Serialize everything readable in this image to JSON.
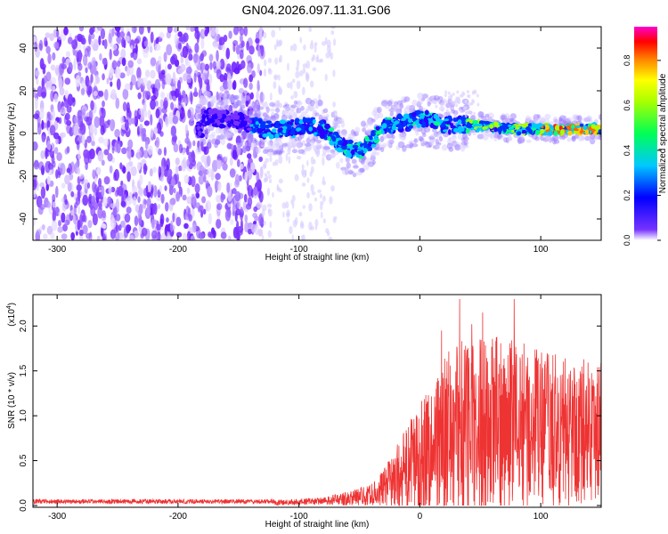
{
  "title": "GN04.2026.097.11.31.G06",
  "chart_data": [
    {
      "type": "heatmap",
      "name": "spectrogram",
      "xlabel": "Height of straight line (km)",
      "ylabel": "Frequency (Hz)",
      "xlim": [
        -320,
        150
      ],
      "ylim": [
        -50,
        50
      ],
      "xticks": [
        -300,
        -200,
        -100,
        0,
        100
      ],
      "xtick_labels": [
        "-300",
        "-200",
        "-100",
        "0",
        "100"
      ],
      "yticks": [
        -40,
        -20,
        0,
        20,
        40
      ],
      "ytick_labels": [
        "-40",
        "-20",
        "0",
        "20",
        "40"
      ],
      "colorbar": {
        "label": "Normalized spectral amplitude",
        "range": [
          0,
          0.95
        ],
        "ticks": [
          0.0,
          0.2,
          0.4,
          0.6,
          0.8
        ],
        "tick_labels": [
          "0.0",
          "0.2",
          "0.4",
          "0.6",
          "0.8"
        ],
        "colormap": [
          "#ffffff",
          "#3300ff",
          "#0000ff",
          "#00e5ff",
          "#00ff00",
          "#ffff00",
          "#ff8000",
          "#ff0000",
          "#ff00cc"
        ]
      },
      "features": {
        "noise_region_x": [
          -320,
          -130
        ],
        "faint_region_x": [
          -130,
          -70
        ],
        "signal_trace": [
          [
            -180,
            8
          ],
          [
            -150,
            6
          ],
          [
            -130,
            2
          ],
          [
            -110,
            2
          ],
          [
            -90,
            4
          ],
          [
            -80,
            2
          ],
          [
            -70,
            -3
          ],
          [
            -60,
            -7
          ],
          [
            -50,
            -8
          ],
          [
            -40,
            -4
          ],
          [
            -30,
            4
          ],
          [
            -10,
            5
          ],
          [
            0,
            7
          ],
          [
            10,
            6
          ],
          [
            20,
            4
          ],
          [
            40,
            4
          ],
          [
            60,
            3
          ],
          [
            80,
            2
          ],
          [
            100,
            2
          ],
          [
            120,
            2
          ],
          [
            150,
            2
          ]
        ]
      }
    },
    {
      "type": "line",
      "name": "snr",
      "xlabel": "Height of straight line (km)",
      "ylabel": "SNR (10 * v/v)",
      "yscale_label": "(x10",
      "yscale_exp": "4",
      "xlim": [
        -320,
        150
      ],
      "ylim": [
        -0.02,
        2.35
      ],
      "xticks": [
        -300,
        -200,
        -100,
        0,
        100
      ],
      "xtick_labels": [
        "-300",
        "-200",
        "-100",
        "0",
        "100"
      ],
      "yticks": [
        0.0,
        0.5,
        1.0,
        1.5,
        2.0
      ],
      "ytick_labels": [
        "0.0",
        "0.5",
        "1.0",
        "1.5",
        "2.0"
      ],
      "color": "#ee3333",
      "envelope": {
        "x": [
          -320,
          -120,
          -80,
          -60,
          -40,
          -30,
          -20,
          -10,
          0,
          10,
          20,
          30,
          40,
          60,
          80,
          100,
          120,
          140,
          150
        ],
        "baseline": [
          0.03,
          0.03,
          0.05,
          0.08,
          0.12,
          0.2,
          0.3,
          0.4,
          0.55,
          0.65,
          0.75,
          0.85,
          0.85,
          0.9,
          0.9,
          0.85,
          0.8,
          0.85,
          0.9
        ],
        "amplitude": [
          0.02,
          0.03,
          0.04,
          0.08,
          0.12,
          0.2,
          0.35,
          0.5,
          0.65,
          0.75,
          0.9,
          1.0,
          1.05,
          1.0,
          1.0,
          0.9,
          0.85,
          0.8,
          0.8
        ]
      },
      "peaks": [
        [
          33,
          2.3
        ],
        [
          78,
          2.3
        ],
        [
          52,
          2.15
        ],
        [
          43,
          2.02
        ],
        [
          18,
          1.95
        ]
      ]
    }
  ]
}
